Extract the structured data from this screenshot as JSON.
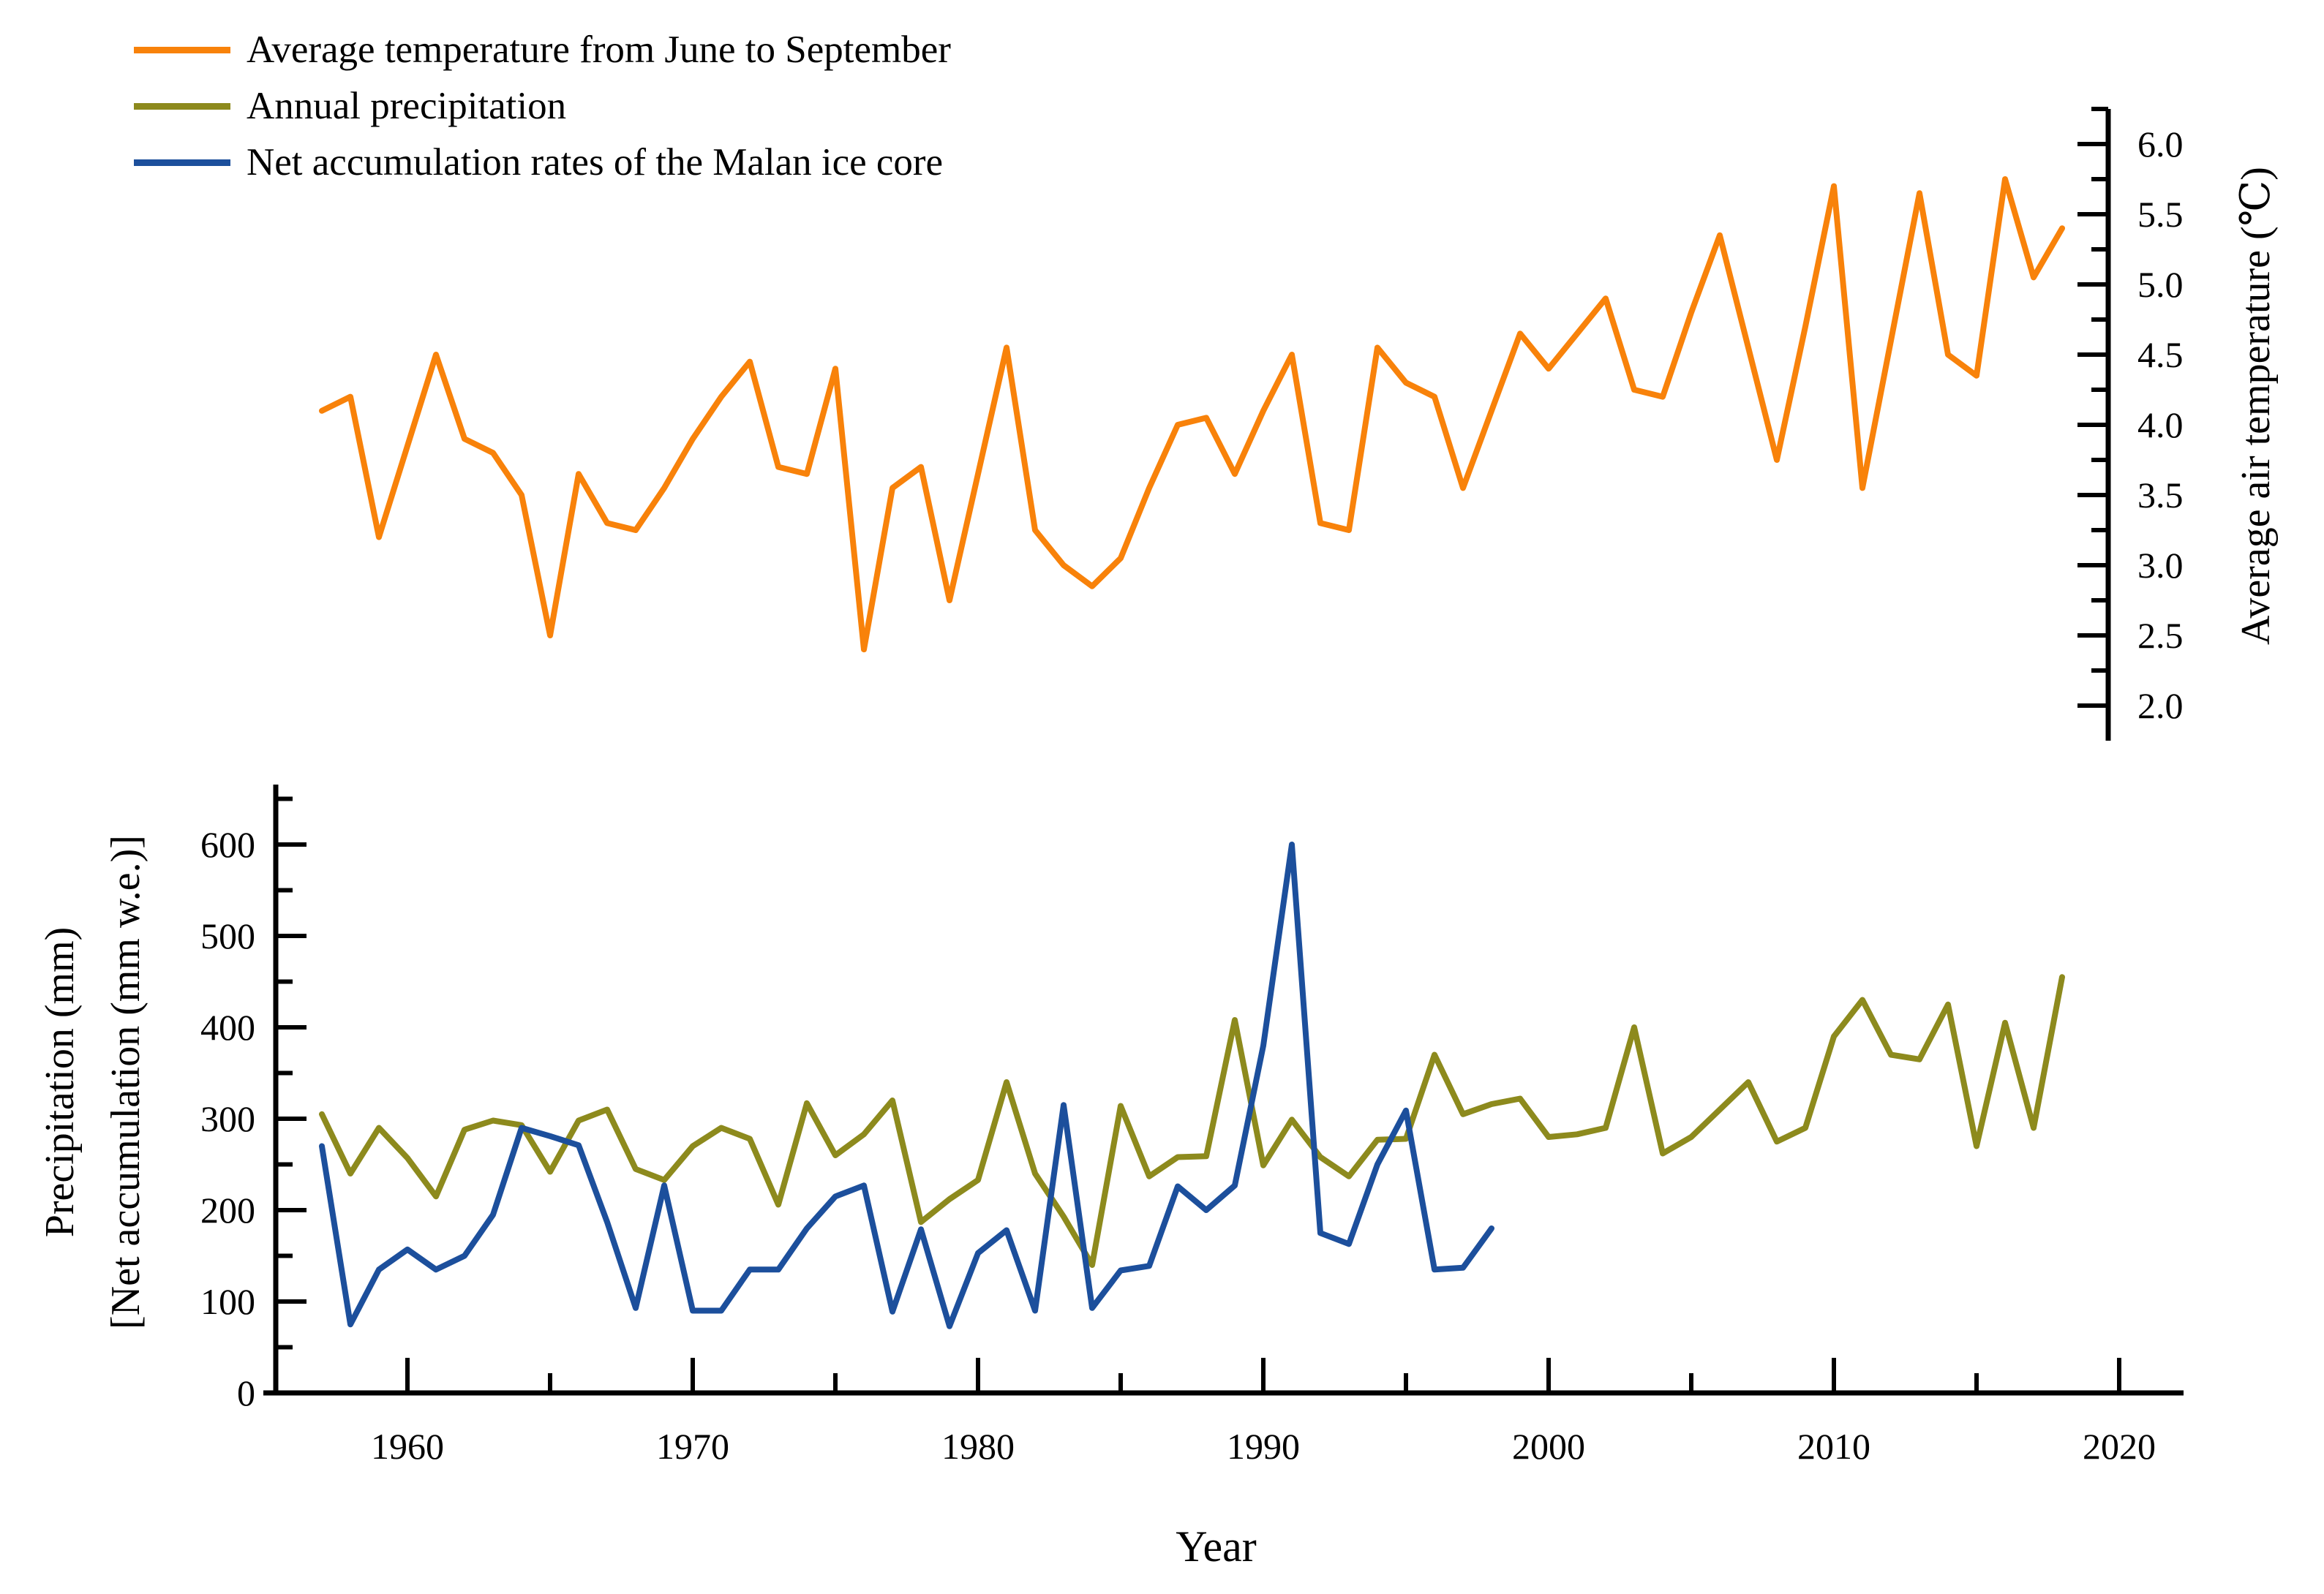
{
  "figure": {
    "background": "#ffffff"
  },
  "colors": {
    "temperature": "#f8820a",
    "precipitation": "#8d8a1d",
    "net_accumulation": "#1c4f9c",
    "axis": "#000000"
  },
  "legend": {
    "items": [
      {
        "id": "temperature",
        "label": "Average temperature from June to September",
        "color": "#f8820a"
      },
      {
        "id": "precipitation",
        "label": "Annual precipitation",
        "color": "#8d8a1d"
      },
      {
        "id": "net_accumulation",
        "label": "Net accumulation rates of the Malan ice core",
        "color": "#1c4f9c"
      }
    ]
  },
  "axes": {
    "x": {
      "label": "Year",
      "major_ticks": [
        1960,
        1970,
        1980,
        1990,
        2000,
        2010,
        2020
      ],
      "major_tick_labels": [
        "1960",
        "1970",
        "1980",
        "1990",
        "2000",
        "2010",
        "2020"
      ],
      "minor_ticks": [
        1965,
        1975,
        1985,
        1995,
        2005,
        2015
      ]
    },
    "left": {
      "label_line1": "Precipitation (mm)",
      "label_line2": "[Net accumulation (mm w.e.)]",
      "ylim": [
        0,
        600
      ],
      "major_ticks": [
        0,
        100,
        200,
        300,
        400,
        500,
        600
      ],
      "major_tick_labels": [
        "0",
        "100",
        "200",
        "300",
        "400",
        "500",
        "600"
      ],
      "minor_ticks": [
        50,
        150,
        250,
        350,
        450,
        550,
        650
      ]
    },
    "right": {
      "label": "Average air temperature (℃)",
      "ylim": [
        2.0,
        6.0
      ],
      "major_ticks": [
        2.0,
        2.5,
        3.0,
        3.5,
        4.0,
        4.5,
        5.0,
        5.5,
        6.0
      ],
      "major_tick_labels": [
        "2.0",
        "2.5",
        "3.0",
        "3.5",
        "4.0",
        "4.5",
        "5.0",
        "5.5",
        "6.0"
      ],
      "minor_ticks": [
        2.25,
        2.75,
        3.25,
        3.75,
        4.25,
        4.75,
        5.25,
        5.75,
        6.25
      ]
    }
  },
  "chart_data": [
    {
      "type": "line",
      "id": "temperature",
      "name": "Average temperature from June to September",
      "axis": "right",
      "color": "#f8820a",
      "x_start": 1957,
      "x": [
        1957,
        1958,
        1959,
        1960,
        1961,
        1962,
        1963,
        1964,
        1965,
        1966,
        1967,
        1968,
        1969,
        1970,
        1971,
        1972,
        1973,
        1974,
        1975,
        1976,
        1977,
        1978,
        1979,
        1980,
        1981,
        1982,
        1983,
        1984,
        1985,
        1986,
        1987,
        1988,
        1989,
        1990,
        1991,
        1992,
        1993,
        1994,
        1995,
        1996,
        1997,
        1998,
        1999,
        2000,
        2001,
        2002,
        2003,
        2004,
        2005,
        2006,
        2007,
        2008,
        2009,
        2010,
        2011,
        2012,
        2013,
        2014,
        2015,
        2016,
        2017,
        2018
      ],
      "values": [
        4.1,
        4.2,
        3.2,
        3.85,
        4.5,
        3.9,
        3.8,
        3.5,
        2.5,
        3.65,
        3.3,
        3.25,
        3.55,
        3.9,
        4.2,
        4.45,
        3.7,
        3.65,
        4.4,
        2.4,
        3.55,
        3.7,
        2.75,
        3.65,
        4.55,
        3.25,
        3.0,
        2.85,
        3.05,
        3.55,
        4.0,
        4.05,
        3.65,
        4.1,
        4.5,
        3.3,
        3.25,
        4.55,
        4.3,
        4.2,
        3.55,
        4.1,
        4.65,
        4.4,
        4.65,
        4.9,
        4.25,
        4.2,
        4.8,
        5.35,
        4.55,
        3.75,
        4.7,
        5.7,
        3.55,
        4.6,
        5.65,
        4.5,
        4.35,
        5.75,
        5.05,
        5.4
      ]
    },
    {
      "type": "line",
      "id": "precipitation",
      "name": "Annual precipitation",
      "axis": "left",
      "color": "#8d8a1d",
      "x_start": 1957,
      "x": [
        1957,
        1958,
        1959,
        1960,
        1961,
        1962,
        1963,
        1964,
        1965,
        1966,
        1967,
        1968,
        1969,
        1970,
        1971,
        1972,
        1973,
        1974,
        1975,
        1976,
        1977,
        1978,
        1979,
        1980,
        1981,
        1982,
        1983,
        1984,
        1985,
        1986,
        1987,
        1988,
        1989,
        1990,
        1991,
        1992,
        1993,
        1994,
        1995,
        1996,
        1997,
        1998,
        1999,
        2000,
        2001,
        2002,
        2003,
        2004,
        2005,
        2006,
        2007,
        2008,
        2009,
        2010,
        2011,
        2012,
        2013,
        2014,
        2015,
        2016,
        2017,
        2018
      ],
      "values": [
        305,
        240,
        290,
        257,
        215,
        288,
        298,
        293,
        242,
        298,
        310,
        245,
        233,
        270,
        290,
        278,
        206,
        317,
        260,
        283,
        320,
        187,
        212,
        233,
        340,
        240,
        193,
        140,
        314,
        237,
        258,
        259,
        408,
        249,
        299,
        258,
        237,
        277,
        278,
        370,
        305,
        316,
        322,
        280,
        283,
        290,
        400,
        262,
        280,
        310,
        340,
        275,
        290,
        390,
        430,
        370,
        365,
        425,
        270,
        405,
        290,
        455
      ]
    },
    {
      "type": "line",
      "id": "net_accumulation",
      "name": "Net accumulation rates of the Malan ice core",
      "axis": "left",
      "color": "#1c4f9c",
      "x_start": 1957,
      "x": [
        1957,
        1958,
        1959,
        1960,
        1961,
        1962,
        1963,
        1964,
        1965,
        1966,
        1967,
        1968,
        1969,
        1970,
        1971,
        1972,
        1973,
        1974,
        1975,
        1976,
        1977,
        1978,
        1979,
        1980,
        1981,
        1982,
        1983,
        1984,
        1985,
        1986,
        1987,
        1988,
        1989,
        1990,
        1991,
        1992,
        1993,
        1994,
        1995,
        1996,
        1997,
        1998
      ],
      "values": [
        270,
        75,
        135,
        157,
        135,
        150,
        195,
        290,
        281,
        271,
        187,
        93,
        227,
        90,
        90,
        135,
        135,
        180,
        215,
        227,
        89,
        179,
        73,
        153,
        178,
        90,
        315,
        93,
        134,
        139,
        226,
        200,
        227,
        380,
        600,
        175,
        163,
        250,
        309,
        135,
        137,
        180
      ]
    }
  ]
}
